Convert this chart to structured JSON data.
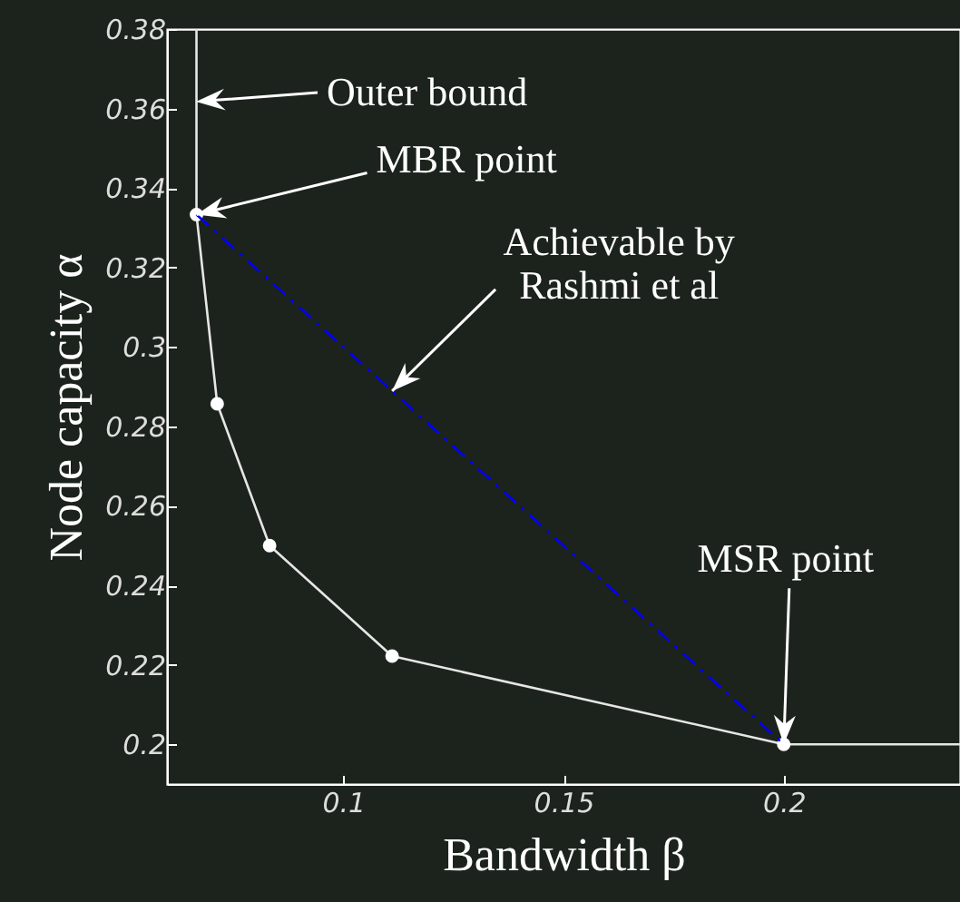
{
  "chart_data": {
    "type": "line",
    "xlabel": "Bandwidth β",
    "ylabel": "Node capacity α",
    "xlim": [
      0.06,
      0.24
    ],
    "ylim": [
      0.19,
      0.38
    ],
    "xticks": [
      0.1,
      0.15,
      0.2
    ],
    "yticks": [
      0.2,
      0.22,
      0.24,
      0.26,
      0.28,
      0.3,
      0.32,
      0.34,
      0.36,
      0.38
    ],
    "grid": false,
    "series": [
      {
        "type": "line",
        "color": "#e6e6e6",
        "x": [
          0.0667,
          0.0667,
          0.0714,
          0.0833,
          0.1111,
          0.2,
          0.24
        ],
        "values": [
          0.38,
          0.3333,
          0.2857,
          0.25,
          0.2222,
          0.2,
          0.2
        ]
      },
      {
        "type": "scatter",
        "color": "#ffffff",
        "marker": "circle",
        "x": [
          0.0667,
          0.0714,
          0.0833,
          0.1111,
          0.2
        ],
        "values": [
          0.3333,
          0.2857,
          0.25,
          0.2222,
          0.2
        ]
      },
      {
        "type": "line",
        "color": "#0000ff",
        "line_style": "dashed",
        "x": [
          0.0667,
          0.2
        ],
        "values": [
          0.3333,
          0.2
        ]
      }
    ],
    "annotations": [
      "Outer bound",
      {
        "text": "MBR point",
        "x": 0.0667,
        "y": 0.3333
      },
      {
        "text": "Achievable by\nRashmi et al",
        "x": 0.1111,
        "y": 0.2889
      },
      {
        "text": "MSR point",
        "x": 0.2,
        "y": 0.2
      }
    ]
  }
}
